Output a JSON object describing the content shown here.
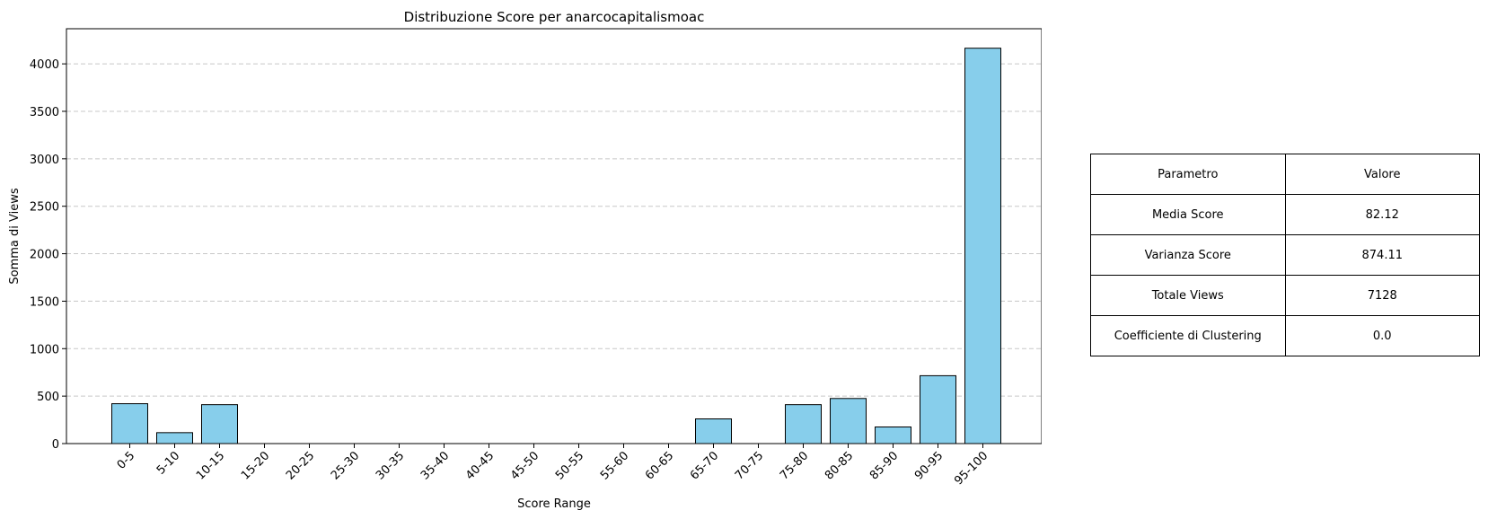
{
  "chart_data": {
    "type": "bar",
    "title": "Distribuzione Score per anarcocapitalismoac",
    "xlabel": "Score Range",
    "ylabel": "Somma di Views",
    "categories": [
      "0-5",
      "5-10",
      "10-15",
      "15-20",
      "20-25",
      "25-30",
      "30-35",
      "35-40",
      "40-45",
      "45-50",
      "50-55",
      "55-60",
      "60-65",
      "65-70",
      "70-75",
      "75-80",
      "80-85",
      "85-90",
      "90-95",
      "95-100"
    ],
    "values": [
      420,
      115,
      410,
      0,
      0,
      0,
      0,
      0,
      0,
      0,
      0,
      0,
      0,
      260,
      0,
      410,
      475,
      175,
      715,
      4165
    ],
    "ylim": [
      0,
      4370
    ],
    "yticks": [
      0,
      500,
      1000,
      1500,
      2000,
      2500,
      3000,
      3500,
      4000
    ],
    "grid": "y-dashed",
    "bar_color": "#87ceeb",
    "bar_edge_color": "#000000",
    "grid_color": "#c8c8c8"
  },
  "table": {
    "header": {
      "param": "Parametro",
      "value": "Valore"
    },
    "rows": [
      {
        "param": "Media Score",
        "value": "82.12"
      },
      {
        "param": "Varianza Score",
        "value": "874.11"
      },
      {
        "param": "Totale Views",
        "value": "7128"
      },
      {
        "param": "Coefficiente di Clustering",
        "value": "0.0"
      }
    ]
  }
}
